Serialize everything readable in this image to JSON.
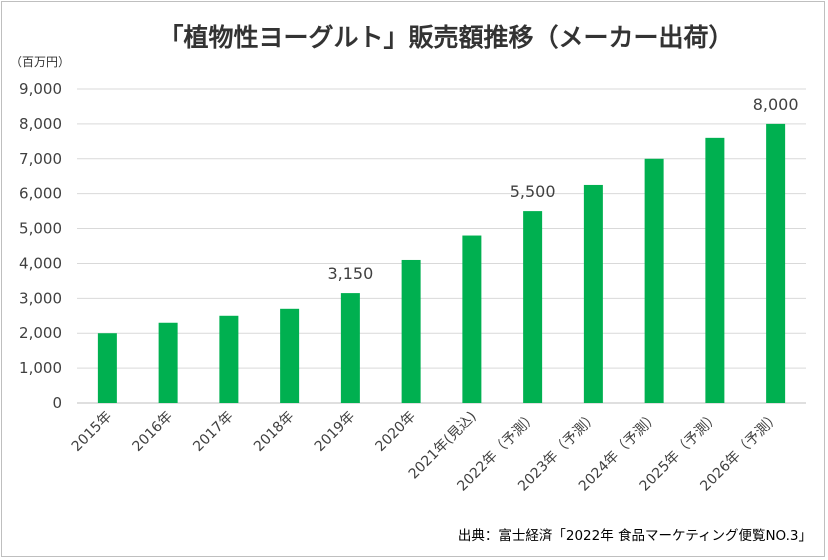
{
  "chart_data": {
    "type": "bar",
    "title": "「植物性ヨーグルト」販売額推移（メーカー出荷）",
    "unit_label": "（百万円）",
    "categories": [
      "2015年",
      "2016年",
      "2017年",
      "2018年",
      "2019年",
      "2020年",
      "2021年(見込)",
      "2022年（予測）",
      "2023年（予測）",
      "2024年（予測）",
      "2025年（予測）",
      "2026年（予測）"
    ],
    "values": [
      2000,
      2300,
      2500,
      2700,
      3150,
      4100,
      4800,
      5500,
      6250,
      7000,
      7600,
      8000
    ],
    "data_labels": [
      {
        "index": 4,
        "text": "3,150"
      },
      {
        "index": 7,
        "text": "5,500"
      },
      {
        "index": 11,
        "text": "8,000"
      }
    ],
    "y_ticks": [
      "0",
      "1,000",
      "2,000",
      "3,000",
      "4,000",
      "5,000",
      "6,000",
      "7,000",
      "8,000",
      "9,000"
    ],
    "ylim": [
      0,
      9000
    ],
    "y_step": 1000,
    "grid": true,
    "bar_color": "#00b050",
    "xlabel": "",
    "ylabel": "",
    "source": "出典：富士経済「2022年 食品マーケティング便覧NO.3」"
  }
}
